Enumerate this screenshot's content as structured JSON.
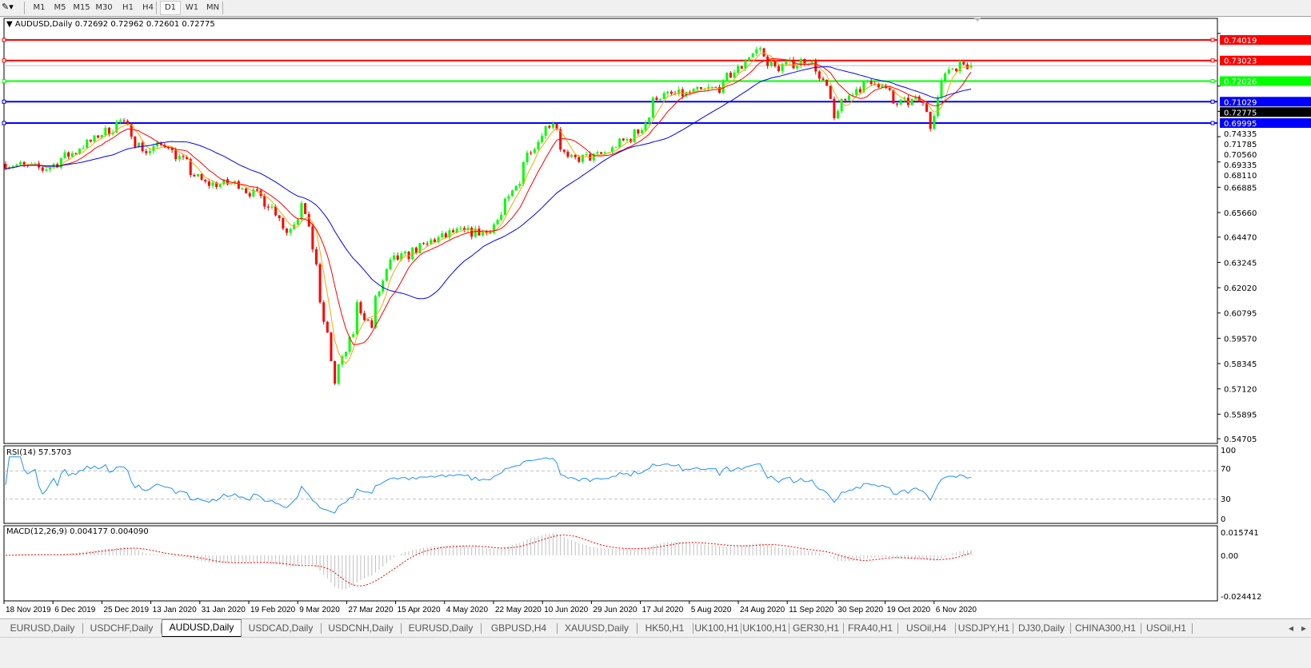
{
  "toolbar": {
    "tool_icon": "line-tool-icon",
    "timeframes": [
      "M1",
      "M5",
      "M15",
      "M30",
      "H1",
      "H4",
      "D1",
      "W1",
      "MN"
    ],
    "active_timeframe": "D1"
  },
  "chart": {
    "symbol_title": "AUDUSD,Daily",
    "ohlc": "0.72692 0.72962 0.72601 0.72775",
    "current_price": "0.72775",
    "colors": {
      "bull": "#00ff00",
      "bear": "#ff0000",
      "ma_fast": "#ffa500",
      "ma_mid": "#ff0000",
      "ma_slow": "#0000ff",
      "rsi": "#1e90ff",
      "macd_hist": "#c0c0c0",
      "macd_signal": "#ff0000"
    },
    "levels": [
      {
        "price": "0.74019",
        "color": "#ff0000"
      },
      {
        "price": "0.73023",
        "color": "#ff0000"
      },
      {
        "price": "0.72026",
        "color": "#00ff00"
      },
      {
        "price": "0.71029",
        "color": "#0000ff"
      },
      {
        "price": "0.69995",
        "color": "#0000ff"
      }
    ],
    "price_ticks": [
      "0.74335",
      "0.71785",
      "0.70560",
      "0.69335",
      "0.68110",
      "0.66885",
      "0.65660",
      "0.64470",
      "0.63245",
      "0.62020",
      "0.60795",
      "0.59570",
      "0.58345",
      "0.57120",
      "0.55895",
      "0.54705"
    ],
    "date_ticks": [
      "18 Nov 2019",
      "6 Dec 2019",
      "25 Dec 2019",
      "13 Jan 2020",
      "31 Jan 2020",
      "19 Feb 2020",
      "9 Mar 2020",
      "27 Mar 2020",
      "15 Apr 2020",
      "4 May 2020",
      "22 May 2020",
      "10 Jun 2020",
      "29 Jun 2020",
      "17 Jul 2020",
      "5 Aug 2020",
      "24 Aug 2020",
      "11 Sep 2020",
      "30 Sep 2020",
      "19 Oct 2020",
      "6 Nov 2020"
    ]
  },
  "rsi": {
    "label": "RSI(14) 57.5703",
    "ticks": [
      "100",
      "70",
      "30",
      "0"
    ]
  },
  "macd": {
    "label": "MACD(12,26,9) 0.004177 0.004090",
    "ticks": [
      "0.015741",
      "0.00",
      "-0.024412"
    ]
  },
  "chart_data": {
    "type": "candlestick",
    "symbol": "AUDUSD",
    "timeframe": "Daily",
    "ylim": [
      0.54705,
      0.74335
    ],
    "close_keypoints": [
      {
        "date": "2019-11-18",
        "close": 0.6802
      },
      {
        "date": "2019-12-02",
        "close": 0.6775
      },
      {
        "date": "2019-12-13",
        "close": 0.686
      },
      {
        "date": "2019-12-31",
        "close": 0.7007
      },
      {
        "date": "2020-01-09",
        "close": 0.686
      },
      {
        "date": "2020-01-17",
        "close": 0.69
      },
      {
        "date": "2020-01-31",
        "close": 0.6705
      },
      {
        "date": "2020-02-13",
        "close": 0.6705
      },
      {
        "date": "2020-02-25",
        "close": 0.661
      },
      {
        "date": "2020-03-03",
        "close": 0.6473
      },
      {
        "date": "2020-03-09",
        "close": 0.6628
      },
      {
        "date": "2020-03-13",
        "close": 0.632
      },
      {
        "date": "2020-03-18",
        "close": 0.597
      },
      {
        "date": "2020-03-20",
        "close": 0.5738
      },
      {
        "date": "2020-03-24",
        "close": 0.585
      },
      {
        "date": "2020-03-30",
        "close": 0.612
      },
      {
        "date": "2020-04-03",
        "close": 0.601
      },
      {
        "date": "2020-04-10",
        "close": 0.632
      },
      {
        "date": "2020-04-17",
        "close": 0.636
      },
      {
        "date": "2020-04-27",
        "close": 0.643
      },
      {
        "date": "2020-05-05",
        "close": 0.647
      },
      {
        "date": "2020-05-18",
        "close": 0.647
      },
      {
        "date": "2020-05-26",
        "close": 0.663
      },
      {
        "date": "2020-06-03",
        "close": 0.688
      },
      {
        "date": "2020-06-11",
        "close": 0.701
      },
      {
        "date": "2020-06-17",
        "close": 0.682
      },
      {
        "date": "2020-06-29",
        "close": 0.684
      },
      {
        "date": "2020-07-14",
        "close": 0.6957
      },
      {
        "date": "2020-07-21",
        "close": 0.713
      },
      {
        "date": "2020-07-31",
        "close": 0.7139
      },
      {
        "date": "2020-08-13",
        "close": 0.717
      },
      {
        "date": "2020-08-28",
        "close": 0.7363
      },
      {
        "date": "2020-09-03",
        "close": 0.7266
      },
      {
        "date": "2020-09-16",
        "close": 0.7305
      },
      {
        "date": "2020-09-23",
        "close": 0.717
      },
      {
        "date": "2020-09-25",
        "close": 0.7015
      },
      {
        "date": "2020-10-02",
        "close": 0.715
      },
      {
        "date": "2020-10-12",
        "close": 0.7208
      },
      {
        "date": "2020-10-19",
        "close": 0.7092
      },
      {
        "date": "2020-10-28",
        "close": 0.711
      },
      {
        "date": "2020-11-02",
        "close": 0.6995
      },
      {
        "date": "2020-11-06",
        "close": 0.7247
      },
      {
        "date": "2020-11-13",
        "close": 0.7286
      },
      {
        "date": "2020-11-17",
        "close": 0.72775
      }
    ],
    "last_bar": {
      "open": 0.72692,
      "high": 0.72962,
      "low": 0.72601,
      "close": 0.72775
    },
    "indicators": [
      "MA fast (orange)",
      "MA (red)",
      "MA slow (blue)",
      "RSI(14)",
      "MACD(12,26,9)"
    ],
    "rsi_levels": [
      70,
      30
    ],
    "grid": false
  },
  "tabs": {
    "items": [
      "EURUSD,Daily",
      "USDCHF,Daily",
      "AUDUSD,Daily",
      "USDCAD,Daily",
      "USDCNH,Daily",
      "EURUSD,Daily",
      "GBPUSD,H4",
      "XAUUSD,Daily",
      "HK50,H1",
      "UK100,H1",
      "UK100,H1",
      "GER30,H1",
      "FRA40,H1",
      "USOil,H4",
      "USDJPY,H1",
      "DJ30,Daily",
      "CHINA300,H1",
      "USOil,H1"
    ],
    "active": "AUDUSD,Daily",
    "scroll_left_icon": "◂",
    "scroll_right_icon": "▸"
  }
}
